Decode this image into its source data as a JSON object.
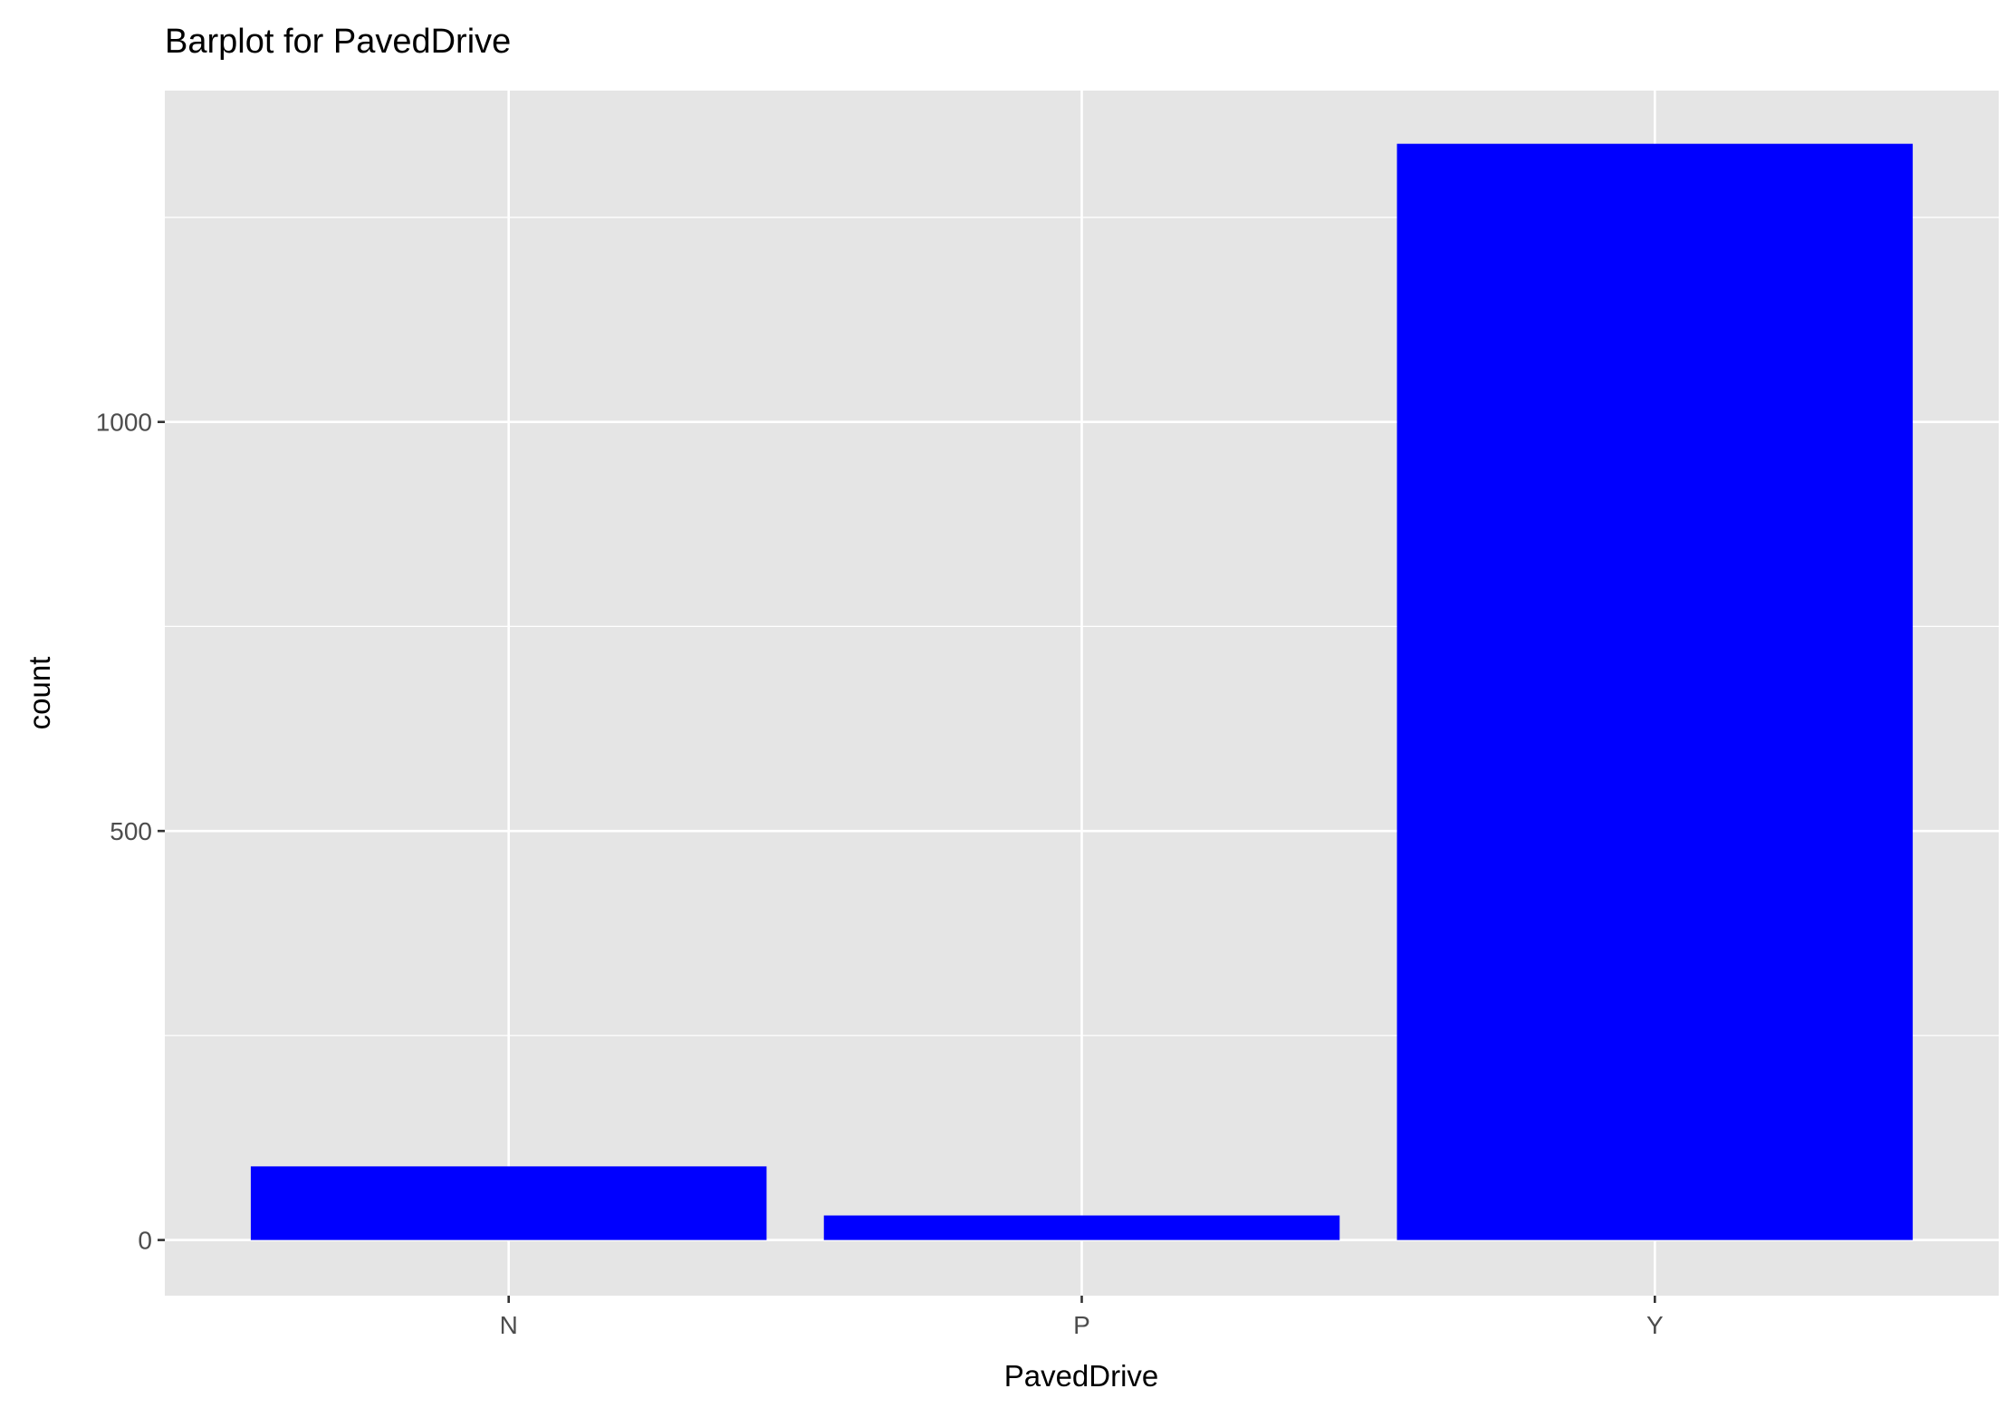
{
  "chart_data": {
    "type": "bar",
    "title": "Barplot for PavedDrive",
    "xlabel": "PavedDrive",
    "ylabel": "count",
    "categories": [
      "N",
      "P",
      "Y"
    ],
    "values": [
      90,
      30,
      1340
    ],
    "ylim": [
      -68,
      1405
    ],
    "yticks": [
      0,
      500,
      1000
    ],
    "ytick_labels": [
      "0",
      "500",
      "1000"
    ],
    "grid": true,
    "legend": "none",
    "colors": {
      "bar": "#0000FF",
      "panel": "#E5E5E5",
      "grid": "#FFFFFF",
      "tick_text": "#4D4D4D",
      "text": "#000000"
    }
  }
}
